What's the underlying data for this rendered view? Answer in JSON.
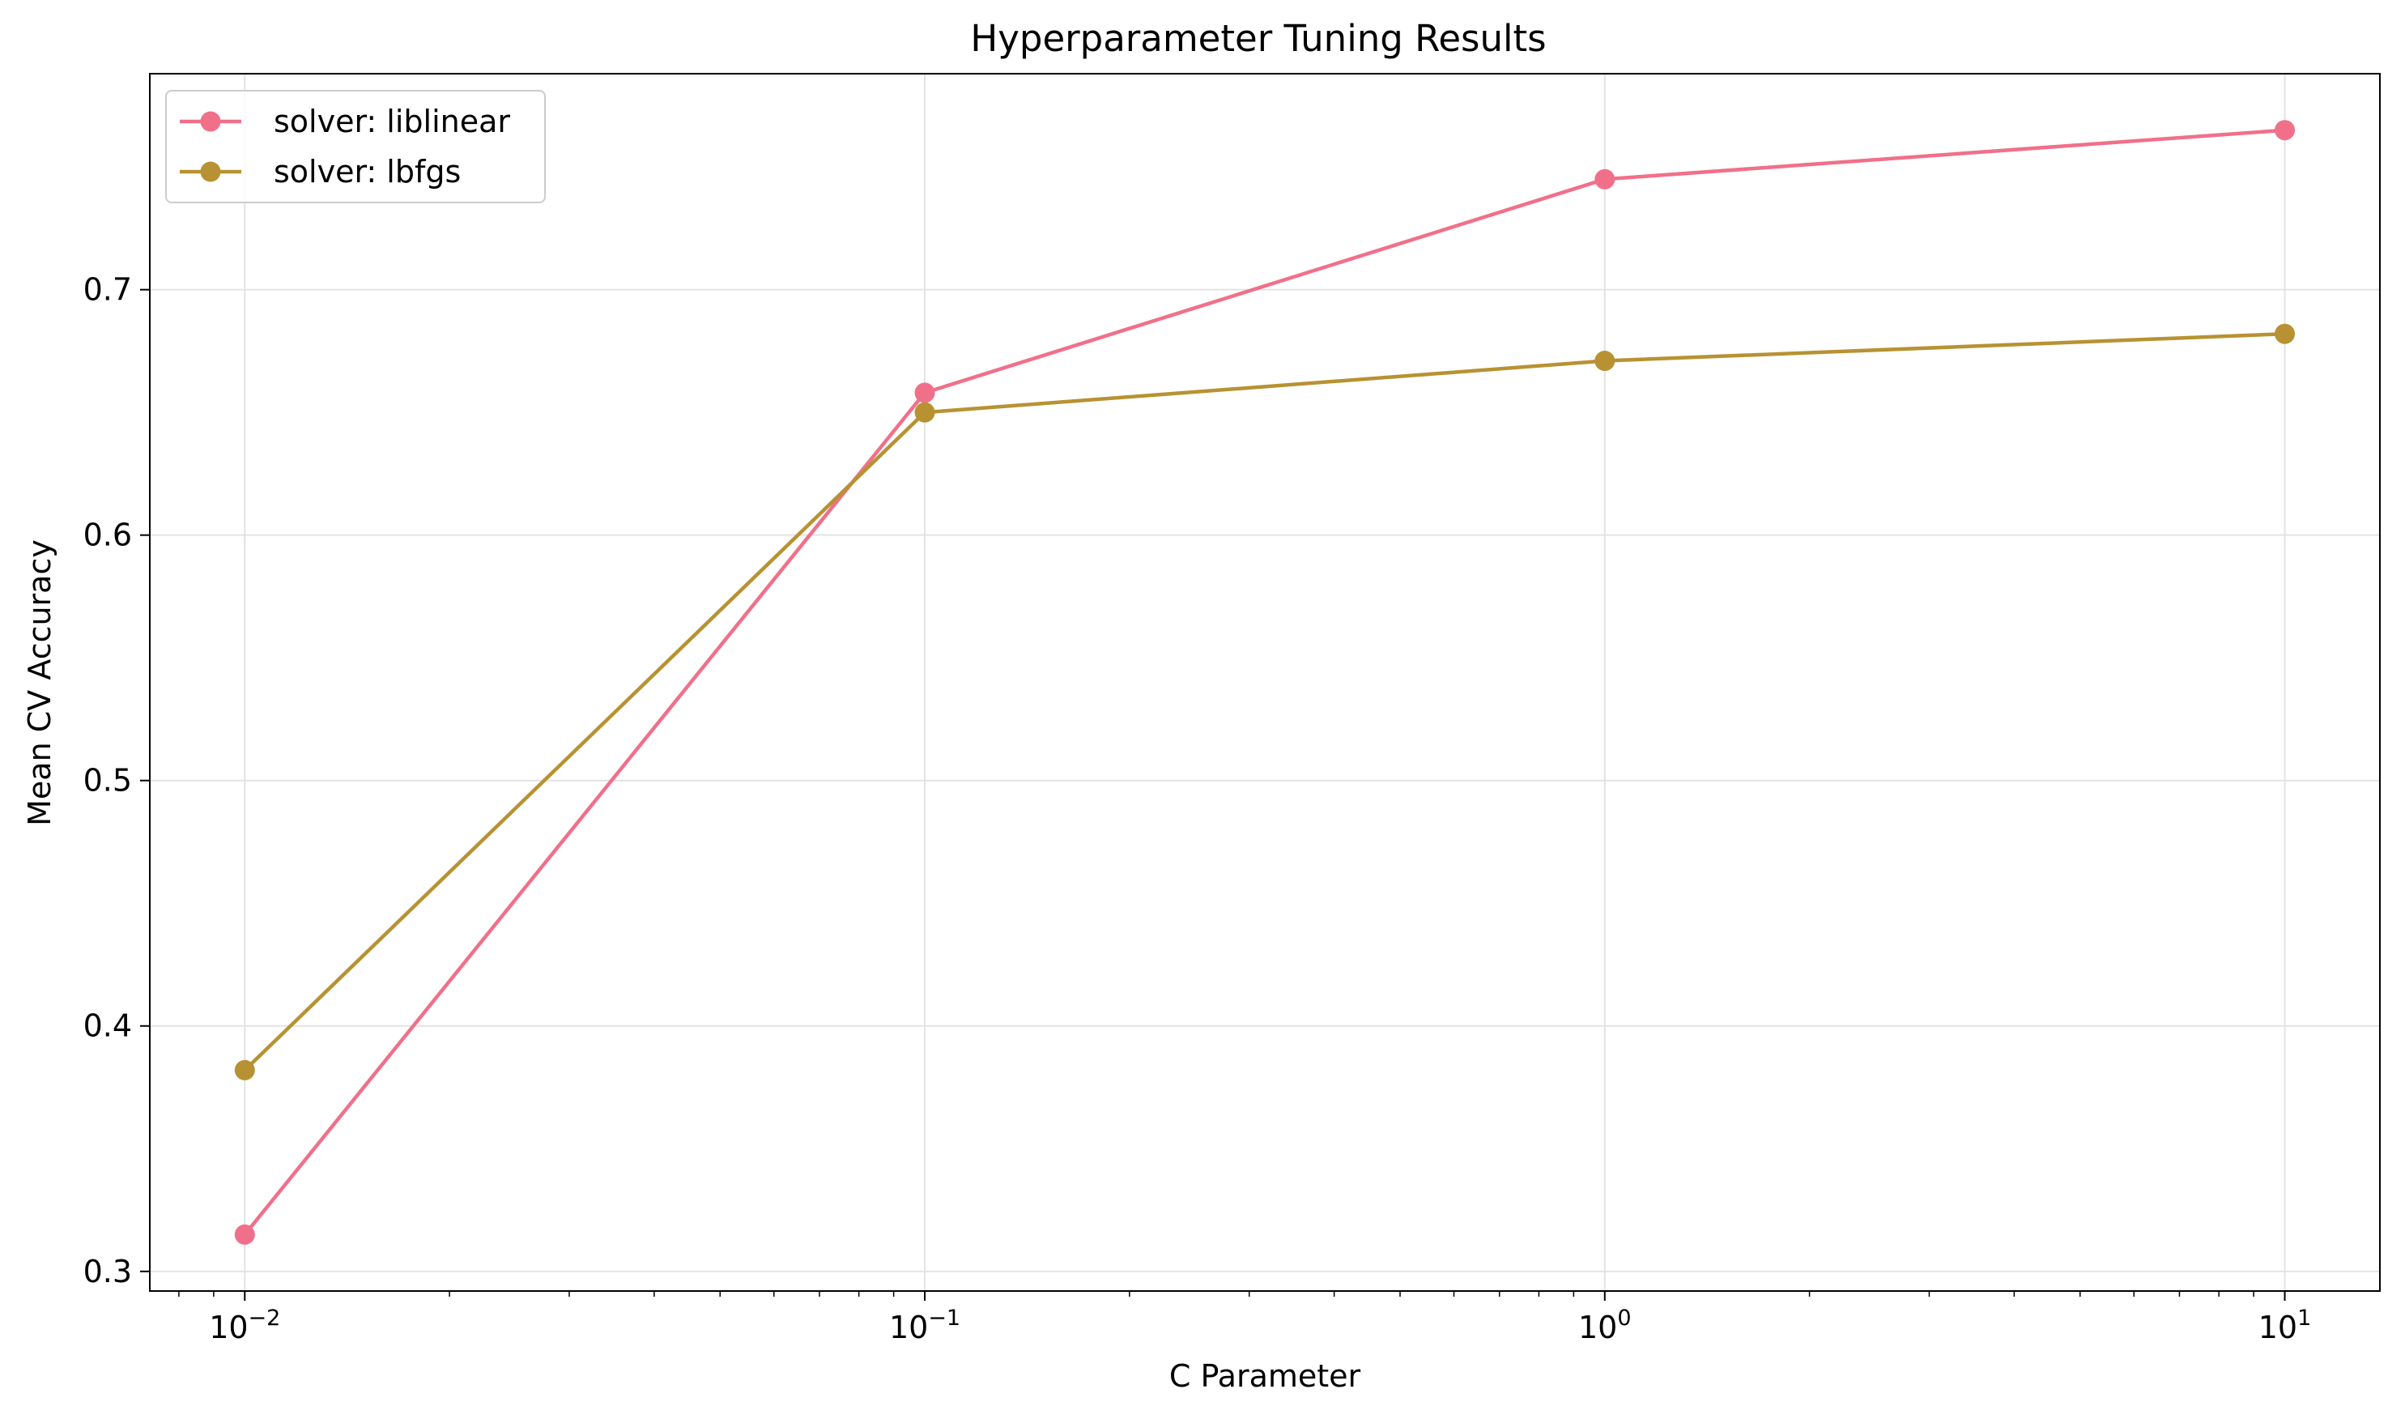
{
  "chart_data": {
    "type": "line",
    "title": "Hyperparameter Tuning Results",
    "xlabel": "C Parameter",
    "ylabel": "Mean CV Accuracy",
    "x_scale": "log",
    "x": [
      0.01,
      0.1,
      1,
      10
    ],
    "x_tick_labels": [
      {
        "base": "10",
        "exp": "−2"
      },
      {
        "base": "10",
        "exp": "−1"
      },
      {
        "base": "10",
        "exp": "0"
      },
      {
        "base": "10",
        "exp": "1"
      }
    ],
    "xlim": [
      0.00725,
      13.8
    ],
    "ylim": [
      0.292,
      0.788
    ],
    "y_ticks": [
      0.3,
      0.4,
      0.5,
      0.6,
      0.7
    ],
    "y_tick_labels": [
      "0.3",
      "0.4",
      "0.5",
      "0.6",
      "0.7"
    ],
    "grid": true,
    "legend_position": "top-left",
    "series": [
      {
        "name": "solver: liblinear",
        "color": "#f0708a",
        "marker": "circle",
        "values": [
          0.315,
          0.658,
          0.745,
          0.765
        ]
      },
      {
        "name": "solver: lbfgs",
        "color": "#b89232",
        "marker": "circle",
        "values": [
          0.382,
          0.65,
          0.671,
          0.682
        ]
      }
    ]
  }
}
